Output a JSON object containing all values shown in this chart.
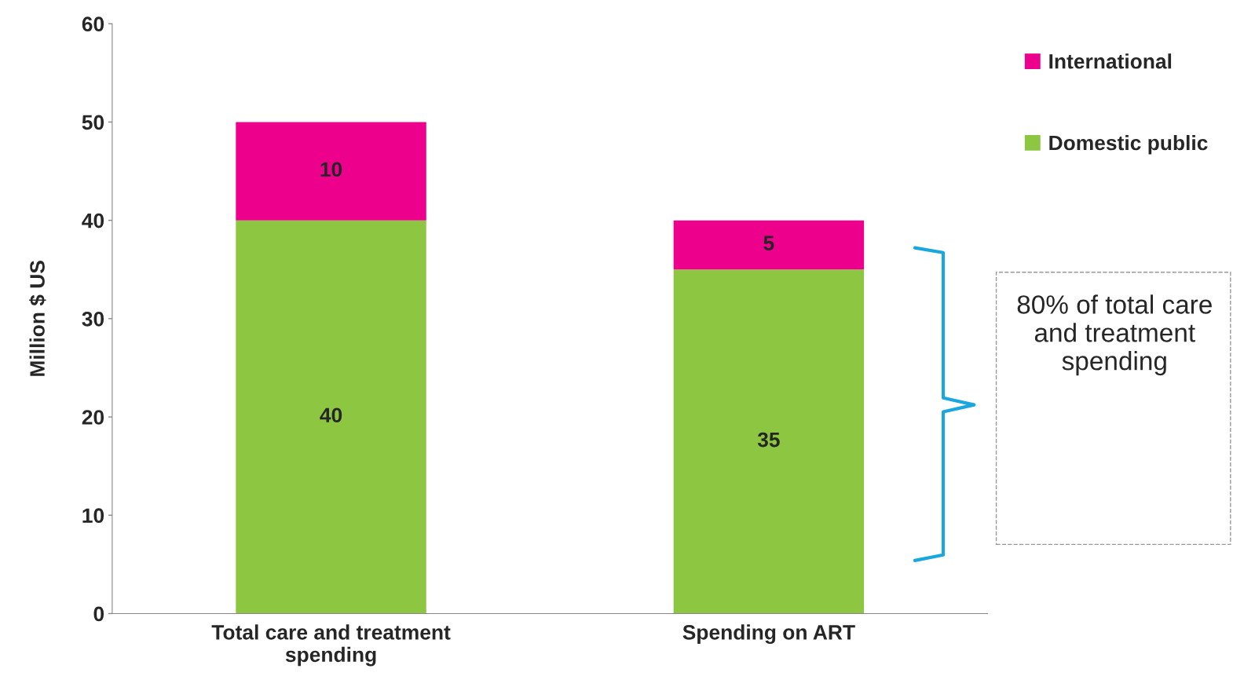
{
  "chart_data": {
    "type": "bar",
    "stacked": true,
    "ylabel": "Million $ US",
    "categories": [
      "Total care and treatment spending",
      "Spending on ART"
    ],
    "series": [
      {
        "name": "Domestic public",
        "color": "#8dc641",
        "values": [
          40,
          35
        ]
      },
      {
        "name": "International",
        "color": "#ec008c",
        "values": [
          10,
          5
        ]
      }
    ],
    "ylim": [
      0,
      60
    ],
    "yticks": [
      0,
      10,
      20,
      30,
      40,
      50,
      60
    ],
    "data_labels": true,
    "legend": "top right",
    "grid": false,
    "annotations": [
      "80% of total care and treatment spending"
    ]
  }
}
